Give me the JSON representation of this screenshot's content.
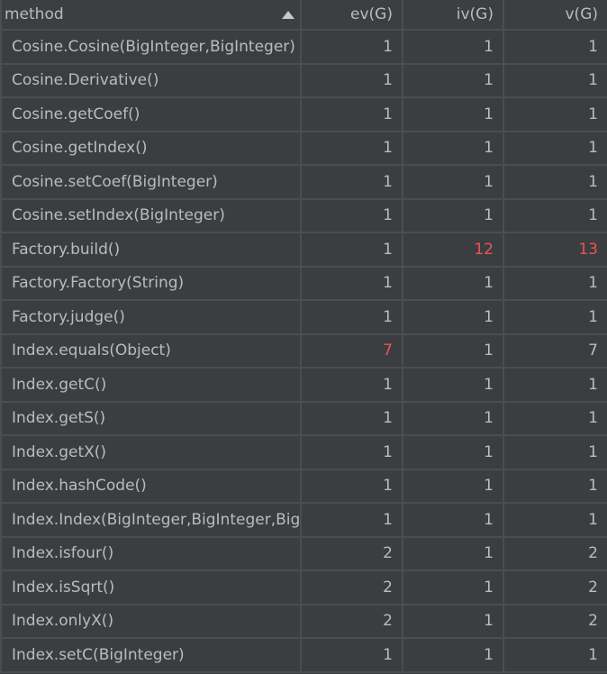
{
  "columns": [
    "method",
    "ev(G)",
    "iv(G)",
    "v(G)"
  ],
  "sort": {
    "column": "method",
    "direction": "ascending",
    "icon": "sort-ascending-icon"
  },
  "colors": {
    "text": "#bbbbbb",
    "highlight": "#f0524f",
    "background": "#3b3e41"
  },
  "rows": [
    {
      "method": "Cosine.Cosine(BigInteger,BigInteger)",
      "ev": "1",
      "iv": "1",
      "v": "1",
      "hl": []
    },
    {
      "method": "Cosine.Derivative()",
      "ev": "1",
      "iv": "1",
      "v": "1",
      "hl": []
    },
    {
      "method": "Cosine.getCoef()",
      "ev": "1",
      "iv": "1",
      "v": "1",
      "hl": []
    },
    {
      "method": "Cosine.getIndex()",
      "ev": "1",
      "iv": "1",
      "v": "1",
      "hl": []
    },
    {
      "method": "Cosine.setCoef(BigInteger)",
      "ev": "1",
      "iv": "1",
      "v": "1",
      "hl": []
    },
    {
      "method": "Cosine.setIndex(BigInteger)",
      "ev": "1",
      "iv": "1",
      "v": "1",
      "hl": []
    },
    {
      "method": "Factory.build()",
      "ev": "1",
      "iv": "12",
      "v": "13",
      "hl": [
        "iv",
        "v"
      ]
    },
    {
      "method": "Factory.Factory(String)",
      "ev": "1",
      "iv": "1",
      "v": "1",
      "hl": []
    },
    {
      "method": "Factory.judge()",
      "ev": "1",
      "iv": "1",
      "v": "1",
      "hl": []
    },
    {
      "method": "Index.equals(Object)",
      "ev": "7",
      "iv": "1",
      "v": "7",
      "hl": [
        "ev"
      ]
    },
    {
      "method": "Index.getC()",
      "ev": "1",
      "iv": "1",
      "v": "1",
      "hl": []
    },
    {
      "method": "Index.getS()",
      "ev": "1",
      "iv": "1",
      "v": "1",
      "hl": []
    },
    {
      "method": "Index.getX()",
      "ev": "1",
      "iv": "1",
      "v": "1",
      "hl": []
    },
    {
      "method": "Index.hashCode()",
      "ev": "1",
      "iv": "1",
      "v": "1",
      "hl": []
    },
    {
      "method": "Index.Index(BigInteger,BigInteger,BigInteger)",
      "ev": "1",
      "iv": "1",
      "v": "1",
      "hl": []
    },
    {
      "method": "Index.isfour()",
      "ev": "2",
      "iv": "1",
      "v": "2",
      "hl": []
    },
    {
      "method": "Index.isSqrt()",
      "ev": "2",
      "iv": "1",
      "v": "2",
      "hl": []
    },
    {
      "method": "Index.onlyX()",
      "ev": "2",
      "iv": "1",
      "v": "2",
      "hl": []
    },
    {
      "method": "Index.setC(BigInteger)",
      "ev": "1",
      "iv": "1",
      "v": "1",
      "hl": []
    }
  ]
}
